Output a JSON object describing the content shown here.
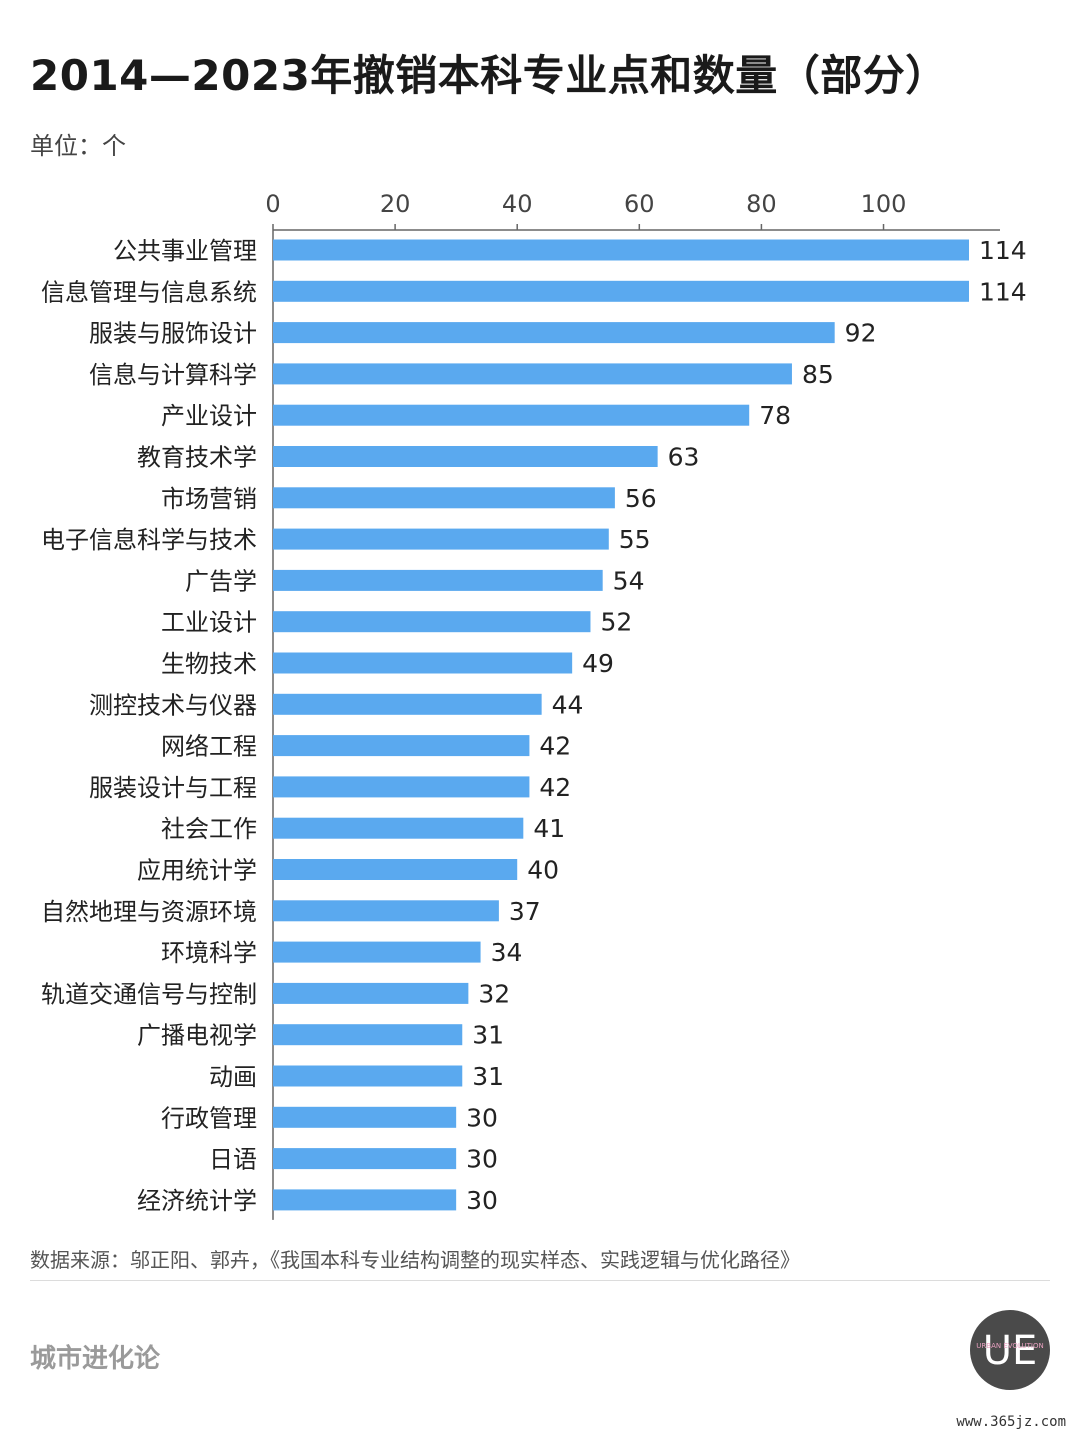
{
  "title": "2014—2023年撤销本科专业点和数量（部分）",
  "unit_label": "单位：个",
  "source_text": "数据来源：邬正阳、郭卉，《我国本科专业结构调整的现实样态、实践逻辑与优化路径》",
  "brand_name": "城市进化论",
  "logo": {
    "letters": "UE",
    "text": "URBAN EVOLUTION"
  },
  "footer_url": "www.365jz.com",
  "colors": {
    "bar": "#5aa9ef",
    "axis": "#555555",
    "text": "#222222"
  },
  "chart_data": {
    "type": "bar",
    "orientation": "horizontal",
    "categories": [
      "公共事业管理",
      "信息管理与信息系统",
      "服装与服饰设计",
      "信息与计算科学",
      "产业设计",
      "教育技术学",
      "市场营销",
      "电子信息科学与技术",
      "广告学",
      "工业设计",
      "生物技术",
      "测控技术与仪器",
      "网络工程",
      "服装设计与工程",
      "社会工作",
      "应用统计学",
      "自然地理与资源环境",
      "环境科学",
      "轨道交通信号与控制",
      "广播电视学",
      "动画",
      "行政管理",
      "日语",
      "经济统计学"
    ],
    "values": [
      114,
      114,
      92,
      85,
      78,
      63,
      56,
      55,
      54,
      52,
      49,
      44,
      42,
      42,
      41,
      40,
      37,
      34,
      32,
      31,
      31,
      30,
      30,
      30
    ],
    "xticks": [
      0,
      20,
      40,
      60,
      80,
      100
    ],
    "xlim": [
      0,
      114
    ],
    "axis_position": "top",
    "grid": false,
    "data_labels": true
  }
}
